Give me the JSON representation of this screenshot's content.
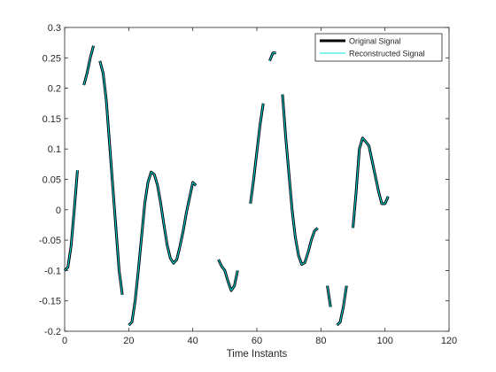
{
  "chart_data": {
    "type": "line",
    "title": "",
    "xlabel": "Time Instants",
    "ylabel": "",
    "xlim": [
      0,
      120
    ],
    "ylim": [
      -0.2,
      0.3
    ],
    "xticks": [
      0,
      20,
      40,
      60,
      80,
      100,
      120
    ],
    "xtick_labels": [
      "0",
      "20",
      "40",
      "60",
      "80",
      "100",
      "120"
    ],
    "yticks": [
      -0.2,
      -0.15,
      -0.1,
      -0.05,
      0,
      0.05,
      0.1,
      0.15,
      0.2,
      0.25,
      0.3
    ],
    "ytick_labels": [
      "-0.2",
      "-0.15",
      "-0.1",
      "-0.05",
      "0",
      "0.05",
      "0.1",
      "0.15",
      "0.2",
      "0.25",
      "0.3"
    ],
    "grid": false,
    "legend_position": "top-right",
    "series": [
      {
        "name": "Original Signal",
        "color": "#000000",
        "style": "solid-thick",
        "segments": [
          [
            [
              0,
              -0.1
            ],
            [
              1,
              -0.095
            ],
            [
              2,
              -0.06
            ],
            [
              3,
              0
            ],
            [
              4,
              0.065
            ]
          ],
          [
            [
              6,
              0.205
            ],
            [
              7,
              0.225
            ],
            [
              8,
              0.25
            ],
            [
              9,
              0.27
            ]
          ],
          [
            [
              11,
              0.245
            ],
            [
              12,
              0.225
            ],
            [
              13,
              0.18
            ],
            [
              14,
              0.11
            ],
            [
              15,
              0.04
            ],
            [
              16,
              -0.03
            ],
            [
              17,
              -0.1
            ],
            [
              18,
              -0.14
            ]
          ],
          [
            [
              20,
              -0.19
            ],
            [
              21,
              -0.185
            ],
            [
              22,
              -0.15
            ],
            [
              23,
              -0.1
            ],
            [
              24,
              -0.045
            ],
            [
              25,
              0.01
            ],
            [
              26,
              0.045
            ],
            [
              27,
              0.062
            ],
            [
              28,
              0.058
            ],
            [
              29,
              0.04
            ],
            [
              30,
              0.01
            ],
            [
              31,
              -0.025
            ],
            [
              32,
              -0.058
            ],
            [
              33,
              -0.08
            ],
            [
              34,
              -0.088
            ],
            [
              35,
              -0.082
            ],
            [
              36,
              -0.06
            ],
            [
              37,
              -0.035
            ],
            [
              38,
              -0.005
            ],
            [
              39,
              0.02
            ],
            [
              40,
              0.045
            ],
            [
              41,
              0.04
            ]
          ],
          [
            [
              48,
              -0.082
            ],
            [
              49,
              -0.093
            ],
            [
              50,
              -0.1
            ],
            [
              51,
              -0.118
            ],
            [
              52,
              -0.133
            ],
            [
              53,
              -0.125
            ],
            [
              54,
              -0.1
            ]
          ],
          [
            [
              58,
              0.01
            ],
            [
              59,
              0.05
            ],
            [
              60,
              0.095
            ],
            [
              61,
              0.14
            ],
            [
              62,
              0.175
            ]
          ],
          [
            [
              64,
              0.245
            ],
            [
              65,
              0.258
            ],
            [
              66,
              0.258
            ]
          ],
          [
            [
              68,
              0.19
            ],
            [
              69,
              0.12
            ],
            [
              70,
              0.06
            ],
            [
              71,
              0.0
            ],
            [
              72,
              -0.045
            ],
            [
              73,
              -0.075
            ],
            [
              74,
              -0.09
            ],
            [
              75,
              -0.087
            ],
            [
              76,
              -0.07
            ],
            [
              77,
              -0.05
            ],
            [
              78,
              -0.035
            ],
            [
              79,
              -0.03
            ]
          ],
          [
            [
              82,
              -0.125
            ],
            [
              83,
              -0.16
            ]
          ],
          [
            [
              85,
              -0.19
            ],
            [
              86,
              -0.185
            ],
            [
              87,
              -0.16
            ],
            [
              88,
              -0.125
            ]
          ],
          [
            [
              90,
              -0.03
            ],
            [
              91,
              0.03
            ],
            [
              92,
              0.1
            ],
            [
              93,
              0.118
            ],
            [
              94,
              0.112
            ],
            [
              95,
              0.105
            ],
            [
              96,
              0.08
            ],
            [
              97,
              0.055
            ],
            [
              98,
              0.03
            ],
            [
              99,
              0.01
            ],
            [
              100,
              0.01
            ],
            [
              101,
              0.022
            ]
          ]
        ]
      },
      {
        "name": "Reconstructed Signal",
        "color": "#00e5e5",
        "style": "solid-thin"
      }
    ]
  }
}
